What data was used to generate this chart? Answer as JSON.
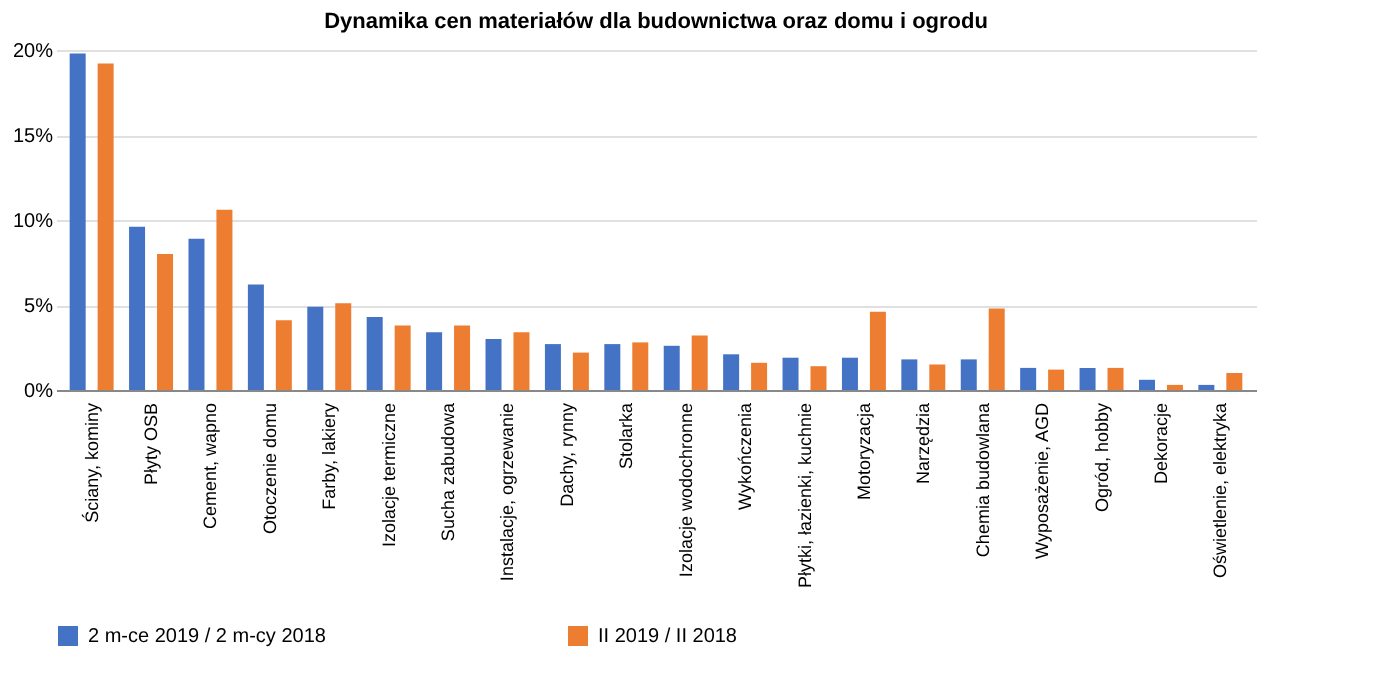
{
  "chart_data": {
    "type": "bar",
    "title": "Dynamika cen materiałów dla budownictwa oraz domu i ogrodu",
    "categories": [
      "Ściany, kominy",
      "Płyty OSB",
      "Cement, wapno",
      "Otoczenie domu",
      "Farby, lakiery",
      "Izolacje termiczne",
      "Sucha zabudowa",
      "Instalacje, ogrzewanie",
      "Dachy, rynny",
      "Stolarka",
      "Izolacje wodochronne",
      "Wykończenia",
      "Płytki, łazienki, kuchnie",
      "Motoryzacja",
      "Narzędzia",
      "Chemia budowlana",
      "Wyposażenie, AGD",
      "Ogród, hobby",
      "Dekoracje",
      "Oświetlenie, elektryka"
    ],
    "series": [
      {
        "name": "2 m-ce 2019 / 2 m-cy 2018",
        "color": "#4472c4",
        "values": [
          19.8,
          9.6,
          8.9,
          6.2,
          4.9,
          4.3,
          3.4,
          3.0,
          2.7,
          2.7,
          2.6,
          2.1,
          1.9,
          1.9,
          1.8,
          1.8,
          1.3,
          1.3,
          0.6,
          0.3
        ]
      },
      {
        "name": "II 2019 / II 2018",
        "color": "#ed7d31",
        "values": [
          19.2,
          8.0,
          10.6,
          4.1,
          5.1,
          3.8,
          3.8,
          3.4,
          2.2,
          2.8,
          3.2,
          1.6,
          1.4,
          4.6,
          1.5,
          4.8,
          1.2,
          1.3,
          0.3,
          1.0
        ]
      }
    ],
    "ylim": [
      0,
      20
    ],
    "yticks": [
      {
        "value": 0,
        "label": "0%"
      },
      {
        "value": 5,
        "label": "5%"
      },
      {
        "value": 10,
        "label": "10%"
      },
      {
        "value": 15,
        "label": "15%"
      },
      {
        "value": 20,
        "label": "20%"
      }
    ],
    "grid": "y",
    "legend": "bottom"
  }
}
